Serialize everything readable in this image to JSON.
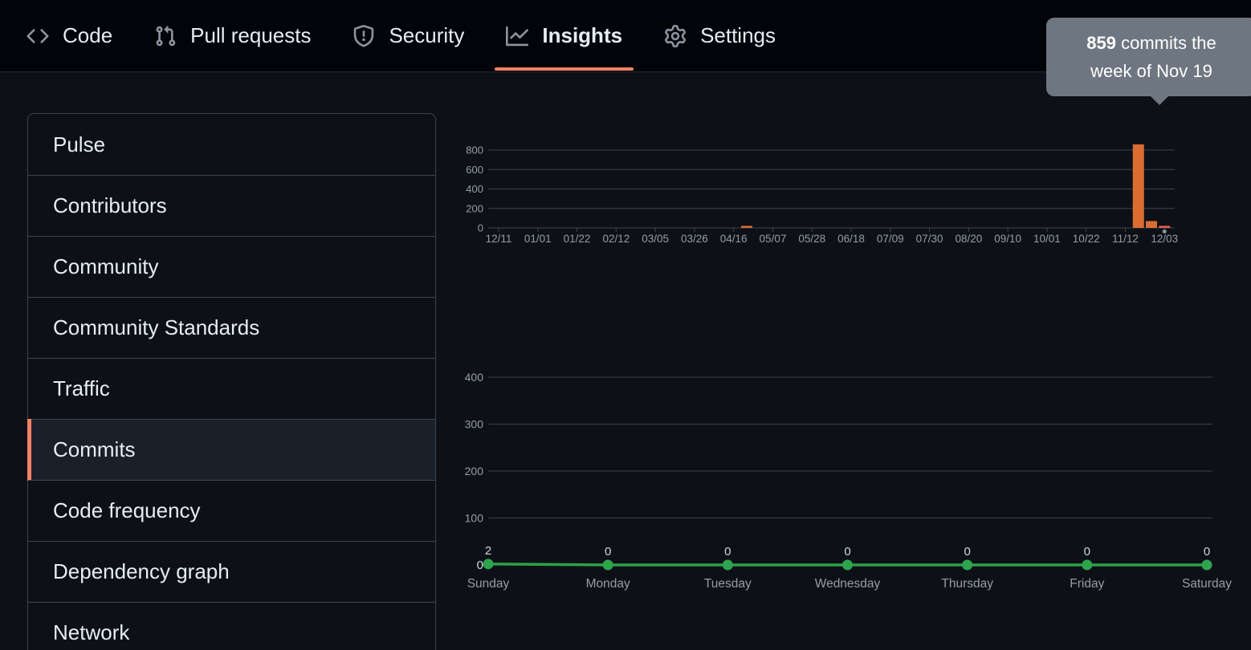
{
  "nav": {
    "accent_color": "#f78166",
    "items": [
      {
        "label": "Code",
        "icon": "code-icon",
        "active": false
      },
      {
        "label": "Pull requests",
        "icon": "pull-request-icon",
        "active": false
      },
      {
        "label": "Security",
        "icon": "shield-icon",
        "active": false
      },
      {
        "label": "Insights",
        "icon": "graph-icon",
        "active": true
      },
      {
        "label": "Settings",
        "icon": "gear-icon",
        "active": false
      }
    ]
  },
  "tooltip": {
    "count": "859",
    "line1_rest": "commits the",
    "line2": "week of Nov 19",
    "background": "#6e7681"
  },
  "sidebar": {
    "selected_accent": "#f78166",
    "items": [
      {
        "label": "Pulse",
        "selected": false
      },
      {
        "label": "Contributors",
        "selected": false
      },
      {
        "label": "Community",
        "selected": false
      },
      {
        "label": "Community Standards",
        "selected": false
      },
      {
        "label": "Traffic",
        "selected": false
      },
      {
        "label": "Commits",
        "selected": true
      },
      {
        "label": "Code frequency",
        "selected": false
      },
      {
        "label": "Dependency graph",
        "selected": false
      },
      {
        "label": "Network",
        "selected": false
      }
    ]
  },
  "chart_data": [
    {
      "type": "bar",
      "title": "",
      "num_weeks": 52,
      "x_tick_labels": [
        "12/11",
        "01/01",
        "01/22",
        "02/12",
        "03/05",
        "03/26",
        "04/16",
        "05/07",
        "05/28",
        "06/18",
        "07/09",
        "07/30",
        "08/20",
        "09/10",
        "10/01",
        "10/22",
        "11/12",
        "12/03"
      ],
      "x_tick_week_step": 3,
      "yticks": [
        0,
        200,
        400,
        600,
        800
      ],
      "ylim": [
        0,
        880
      ],
      "grid": true,
      "legend": "none",
      "bars": [
        {
          "week": 19,
          "value": 15,
          "highlight": false
        },
        {
          "week": 49,
          "value": 859,
          "highlight": false
        },
        {
          "week": 50,
          "value": 70,
          "highlight": false
        },
        {
          "week": 51,
          "value": 12,
          "highlight": true
        }
      ],
      "selected_week_marker": 51,
      "colors": {
        "bar": "#db6d33",
        "bar_highlight": "#ee5f49",
        "grid": "#3c434d",
        "axis_label": "#959da5",
        "marker_dot": "#8b949e"
      }
    },
    {
      "type": "line",
      "title": "",
      "categories": [
        "Sunday",
        "Monday",
        "Tuesday",
        "Wednesday",
        "Thursday",
        "Friday",
        "Saturday"
      ],
      "values": [
        2,
        0,
        0,
        0,
        0,
        0,
        0
      ],
      "value_labels": [
        "2",
        "0",
        "0",
        "0",
        "0",
        "0",
        "0"
      ],
      "yticks": [
        100,
        200,
        300,
        400
      ],
      "zero_label": "0",
      "ylim": [
        0,
        400
      ],
      "grid": true,
      "legend": "none",
      "colors": {
        "line": "#2ea043",
        "dot": "#2da44e",
        "grid": "#3c434d",
        "axis_label": "#959da5",
        "value_label": "#cdd6df"
      }
    }
  ]
}
